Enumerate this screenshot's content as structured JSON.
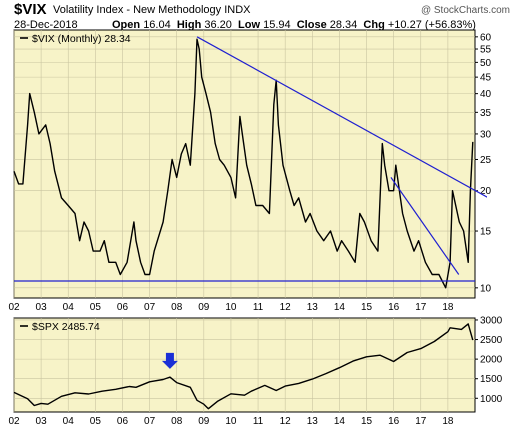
{
  "header": {
    "symbol": "$VIX",
    "description": "Volatility Index - New Methodology",
    "exchange": "INDX",
    "credit": "@ StockCharts.com",
    "date": "28-Dec-2018",
    "open_label": "Open",
    "open": "16.04",
    "high_label": "High",
    "high": "36.20",
    "low_label": "Low",
    "low": "15.94",
    "close_label": "Close",
    "close": "28.34",
    "chg_label": "Chg",
    "chg": "+10.27 (+56.83%)"
  },
  "colors": {
    "panel_bg": "#f7f3c8",
    "line": "#000000",
    "trendline": "#2020d0",
    "arrow": "#1a2fd6",
    "grid": "#c9c4a0"
  },
  "chart_data": [
    {
      "type": "line",
      "legend": "$VIX (Monthly) 28.34",
      "legend_icon": "line-swatch-icon",
      "x_ticks": [
        "02",
        "03",
        "04",
        "05",
        "06",
        "07",
        "08",
        "09",
        "10",
        "11",
        "12",
        "13",
        "14",
        "15",
        "16",
        "17",
        "18"
      ],
      "x_range": [
        2002,
        2019
      ],
      "y_scale": "log",
      "y_ticks": [
        10,
        15,
        20,
        25,
        30,
        35,
        40,
        45,
        50,
        55,
        60
      ],
      "y_range": [
        9.3,
        63
      ],
      "series": [
        {
          "x": [
            2002.0,
            2002.17,
            2002.33,
            2002.5,
            2002.58,
            2002.75,
            2002.92,
            2003.17,
            2003.33,
            2003.5,
            2003.75,
            2004.0,
            2004.25,
            2004.42,
            2004.58,
            2004.75,
            2004.92,
            2005.17,
            2005.33,
            2005.5,
            2005.75,
            2005.92,
            2006.17,
            2006.42,
            2006.5,
            2006.67,
            2006.83,
            2007.0,
            2007.17,
            2007.5,
            2007.67,
            2007.83,
            2008.0,
            2008.17,
            2008.33,
            2008.5,
            2008.67,
            2008.75,
            2008.83,
            2008.92,
            2009.08,
            2009.25,
            2009.42,
            2009.58,
            2009.75,
            2010.0,
            2010.17,
            2010.33,
            2010.42,
            2010.58,
            2010.75,
            2010.92,
            2011.17,
            2011.42,
            2011.58,
            2011.67,
            2011.75,
            2011.92,
            2012.17,
            2012.33,
            2012.5,
            2012.75,
            2012.92,
            2013.17,
            2013.42,
            2013.67,
            2013.92,
            2014.08,
            2014.33,
            2014.58,
            2014.75,
            2014.92,
            2015.17,
            2015.42,
            2015.58,
            2015.67,
            2015.83,
            2016.0,
            2016.08,
            2016.33,
            2016.5,
            2016.75,
            2016.92,
            2017.17,
            2017.42,
            2017.67,
            2017.92,
            2018.08,
            2018.17,
            2018.42,
            2018.58,
            2018.75,
            2018.83,
            2018.92
          ],
          "values": [
            23,
            21,
            21,
            32,
            40,
            35,
            30,
            32,
            28,
            23,
            19,
            18,
            17,
            14,
            16,
            15,
            13,
            13,
            14,
            12,
            12,
            11,
            12,
            16,
            14,
            12,
            11,
            11,
            13,
            16,
            20,
            25,
            22,
            26,
            28,
            24,
            40,
            59,
            55,
            45,
            40,
            35,
            28,
            25,
            24,
            22,
            19,
            34,
            30,
            24,
            21,
            18,
            18,
            17,
            37,
            44,
            32,
            24,
            20,
            18,
            19,
            16,
            17,
            15,
            14,
            15,
            13,
            14,
            13,
            12,
            17,
            16,
            14,
            13,
            28,
            24,
            20,
            20,
            24,
            17,
            15,
            13,
            14,
            12,
            11,
            11,
            10,
            12,
            20,
            16,
            15,
            12,
            20,
            28.34
          ]
        }
      ]
    },
    {
      "type": "line",
      "legend": "$SPX 2485.74",
      "legend_icon": "line-swatch-icon",
      "x_ticks": [
        "02",
        "03",
        "04",
        "05",
        "06",
        "07",
        "08",
        "09",
        "10",
        "11",
        "12",
        "13",
        "14",
        "15",
        "16",
        "17",
        "18"
      ],
      "x_range": [
        2002,
        2019
      ],
      "y_ticks": [
        1000,
        1500,
        2000,
        2500,
        3000
      ],
      "y_range": [
        650,
        3050
      ],
      "annotation": "arrow-down-icon",
      "annotation_x": 2007.75,
      "series": [
        {
          "x": [
            2002.0,
            2002.5,
            2002.75,
            2003.0,
            2003.25,
            2003.75,
            2004.25,
            2004.75,
            2005.25,
            2005.75,
            2006.25,
            2006.5,
            2007.0,
            2007.5,
            2007.75,
            2008.0,
            2008.5,
            2008.75,
            2009.0,
            2009.17,
            2009.5,
            2010.0,
            2010.5,
            2010.75,
            2011.25,
            2011.67,
            2012.0,
            2012.5,
            2013.0,
            2013.5,
            2014.0,
            2014.5,
            2015.0,
            2015.5,
            2016.0,
            2016.5,
            2017.0,
            2017.5,
            2018.0,
            2018.08,
            2018.5,
            2018.75,
            2018.92
          ],
          "values": [
            1150,
            990,
            815,
            870,
            850,
            1050,
            1140,
            1110,
            1180,
            1230,
            1300,
            1280,
            1420,
            1480,
            1540,
            1400,
            1280,
            950,
            850,
            735,
            920,
            1115,
            1080,
            1180,
            1330,
            1200,
            1310,
            1380,
            1490,
            1630,
            1780,
            1950,
            2060,
            2100,
            1940,
            2170,
            2270,
            2450,
            2700,
            2800,
            2760,
            2900,
            2485.74
          ]
        }
      ]
    }
  ]
}
